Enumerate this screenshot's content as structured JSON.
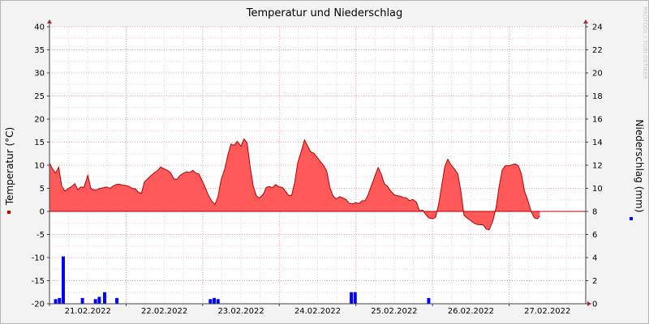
{
  "chart_data": {
    "type": "area+bar",
    "title": "Temperatur und Niederschlag",
    "watermark": "RRDTOOL / TOBI OETIKER",
    "x_tick_labels": [
      "21.02.2022",
      "22.02.2022",
      "23.02.2022",
      "24.02.2022",
      "25.02.2022",
      "26.02.2022",
      "27.02.2022"
    ],
    "x_range_days": [
      0,
      7
    ],
    "y_left": {
      "label": "Temperatur (°C)",
      "range": [
        -20,
        40
      ],
      "ticks": [
        -20,
        -15,
        -10,
        -5,
        0,
        5,
        10,
        15,
        20,
        25,
        30,
        35,
        40
      ]
    },
    "y_right": {
      "label": "Niederschlag (mm)",
      "range": [
        0,
        24
      ],
      "ticks": [
        0,
        2,
        4,
        6,
        8,
        10,
        12,
        14,
        16,
        18,
        20,
        22,
        24
      ]
    },
    "grid": true,
    "series": [
      {
        "name": "Temperatur",
        "axis": "left",
        "color": "#ff5959",
        "line_color": "#b40000",
        "points": [
          [
            0.0,
            10.5
          ],
          [
            0.04,
            9.2
          ],
          [
            0.08,
            8.3
          ],
          [
            0.12,
            9.6
          ],
          [
            0.16,
            5.5
          ],
          [
            0.2,
            4.4
          ],
          [
            0.24,
            4.9
          ],
          [
            0.29,
            5.4
          ],
          [
            0.33,
            6.0
          ],
          [
            0.37,
            4.7
          ],
          [
            0.41,
            5.3
          ],
          [
            0.45,
            5.2
          ],
          [
            0.5,
            7.8
          ],
          [
            0.54,
            5.0
          ],
          [
            0.58,
            4.6
          ],
          [
            0.62,
            4.7
          ],
          [
            0.66,
            5.0
          ],
          [
            0.7,
            5.1
          ],
          [
            0.74,
            5.3
          ],
          [
            0.79,
            5.0
          ],
          [
            0.83,
            5.5
          ],
          [
            0.87,
            5.8
          ],
          [
            0.91,
            5.9
          ],
          [
            0.95,
            5.7
          ],
          [
            1.0,
            5.6
          ],
          [
            1.04,
            5.4
          ],
          [
            1.08,
            5.0
          ],
          [
            1.12,
            4.9
          ],
          [
            1.16,
            4.2
          ],
          [
            1.2,
            3.9
          ],
          [
            1.24,
            6.4
          ],
          [
            1.29,
            7.2
          ],
          [
            1.33,
            7.8
          ],
          [
            1.37,
            8.4
          ],
          [
            1.41,
            8.8
          ],
          [
            1.45,
            9.6
          ],
          [
            1.5,
            9.2
          ],
          [
            1.54,
            8.9
          ],
          [
            1.58,
            8.4
          ],
          [
            1.62,
            7.1
          ],
          [
            1.66,
            6.9
          ],
          [
            1.7,
            7.7
          ],
          [
            1.74,
            8.2
          ],
          [
            1.79,
            8.6
          ],
          [
            1.83,
            8.4
          ],
          [
            1.87,
            8.9
          ],
          [
            1.91,
            8.3
          ],
          [
            1.95,
            8.1
          ],
          [
            2.0,
            6.4
          ],
          [
            2.04,
            4.9
          ],
          [
            2.08,
            3.3
          ],
          [
            2.12,
            2.2
          ],
          [
            2.16,
            1.5
          ],
          [
            2.2,
            3.2
          ],
          [
            2.24,
            6.8
          ],
          [
            2.29,
            9.3
          ],
          [
            2.33,
            12.3
          ],
          [
            2.37,
            14.6
          ],
          [
            2.41,
            14.3
          ],
          [
            2.45,
            15.2
          ],
          [
            2.5,
            14.1
          ],
          [
            2.54,
            15.7
          ],
          [
            2.58,
            14.8
          ],
          [
            2.62,
            9.6
          ],
          [
            2.66,
            5.4
          ],
          [
            2.7,
            3.4
          ],
          [
            2.74,
            2.9
          ],
          [
            2.79,
            3.7
          ],
          [
            2.83,
            5.2
          ],
          [
            2.87,
            5.4
          ],
          [
            2.91,
            5.1
          ],
          [
            2.95,
            5.8
          ],
          [
            3.0,
            5.3
          ],
          [
            3.04,
            5.2
          ],
          [
            3.08,
            4.4
          ],
          [
            3.12,
            3.5
          ],
          [
            3.16,
            3.4
          ],
          [
            3.2,
            6.2
          ],
          [
            3.24,
            10.5
          ],
          [
            3.29,
            13.2
          ],
          [
            3.33,
            15.5
          ],
          [
            3.37,
            14.2
          ],
          [
            3.41,
            12.9
          ],
          [
            3.45,
            12.6
          ],
          [
            3.5,
            11.6
          ],
          [
            3.54,
            10.7
          ],
          [
            3.58,
            9.9
          ],
          [
            3.62,
            8.7
          ],
          [
            3.66,
            5.2
          ],
          [
            3.7,
            3.4
          ],
          [
            3.74,
            2.7
          ],
          [
            3.79,
            3.2
          ],
          [
            3.83,
            2.9
          ],
          [
            3.87,
            2.6
          ],
          [
            3.91,
            1.8
          ],
          [
            3.95,
            1.6
          ],
          [
            4.0,
            1.9
          ],
          [
            4.04,
            1.7
          ],
          [
            4.08,
            2.3
          ],
          [
            4.12,
            2.3
          ],
          [
            4.16,
            3.6
          ],
          [
            4.2,
            5.5
          ],
          [
            4.24,
            7.3
          ],
          [
            4.29,
            9.5
          ],
          [
            4.33,
            8.1
          ],
          [
            4.37,
            6.0
          ],
          [
            4.41,
            5.5
          ],
          [
            4.45,
            4.5
          ],
          [
            4.5,
            3.6
          ],
          [
            4.54,
            3.4
          ],
          [
            4.58,
            3.3
          ],
          [
            4.62,
            3.0
          ],
          [
            4.66,
            2.9
          ],
          [
            4.7,
            2.3
          ],
          [
            4.74,
            2.6
          ],
          [
            4.79,
            2.0
          ],
          [
            4.83,
            0.1
          ],
          [
            4.87,
            0.3
          ],
          [
            4.91,
            -0.6
          ],
          [
            4.95,
            -1.4
          ],
          [
            5.0,
            -1.6
          ],
          [
            5.04,
            -1.3
          ],
          [
            5.08,
            1.5
          ],
          [
            5.12,
            5.6
          ],
          [
            5.16,
            9.7
          ],
          [
            5.2,
            11.3
          ],
          [
            5.24,
            10.1
          ],
          [
            5.29,
            9.1
          ],
          [
            5.33,
            8.1
          ],
          [
            5.37,
            4.4
          ],
          [
            5.41,
            -0.8
          ],
          [
            5.45,
            -1.4
          ],
          [
            5.5,
            -2.0
          ],
          [
            5.54,
            -2.5
          ],
          [
            5.58,
            -2.8
          ],
          [
            5.62,
            -2.9
          ],
          [
            5.66,
            -2.9
          ],
          [
            5.7,
            -3.8
          ],
          [
            5.74,
            -4.0
          ],
          [
            5.79,
            -2.0
          ],
          [
            5.83,
            0.8
          ],
          [
            5.87,
            5.4
          ],
          [
            5.91,
            9.0
          ],
          [
            5.95,
            9.9
          ],
          [
            6.0,
            9.9
          ],
          [
            6.04,
            10.1
          ],
          [
            6.08,
            10.3
          ],
          [
            6.12,
            9.9
          ],
          [
            6.16,
            8.1
          ],
          [
            6.2,
            4.4
          ],
          [
            6.24,
            2.6
          ],
          [
            6.29,
            -0.2
          ],
          [
            6.33,
            -1.4
          ],
          [
            6.37,
            -1.6
          ],
          [
            6.4,
            -1.0
          ]
        ]
      },
      {
        "name": "Niederschlag",
        "axis": "right",
        "color": "#0000ff",
        "bar_width_days": 0.042,
        "bars": [
          [
            0.08,
            0.4
          ],
          [
            0.13,
            0.5
          ],
          [
            0.18,
            4.1
          ],
          [
            0.43,
            0.5
          ],
          [
            0.6,
            0.4
          ],
          [
            0.65,
            0.6
          ],
          [
            0.72,
            1.0
          ],
          [
            0.88,
            0.5
          ],
          [
            2.1,
            0.4
          ],
          [
            2.15,
            0.5
          ],
          [
            2.2,
            0.4
          ],
          [
            3.94,
            1.0
          ],
          [
            3.99,
            1.0
          ],
          [
            4.95,
            0.5
          ]
        ]
      }
    ],
    "legend": [
      {
        "series": "Temperatur",
        "marker_color": "#cc0000",
        "placement": "left"
      },
      {
        "series": "Niederschlag",
        "marker_color": "#0000ff",
        "placement": "right"
      }
    ]
  }
}
